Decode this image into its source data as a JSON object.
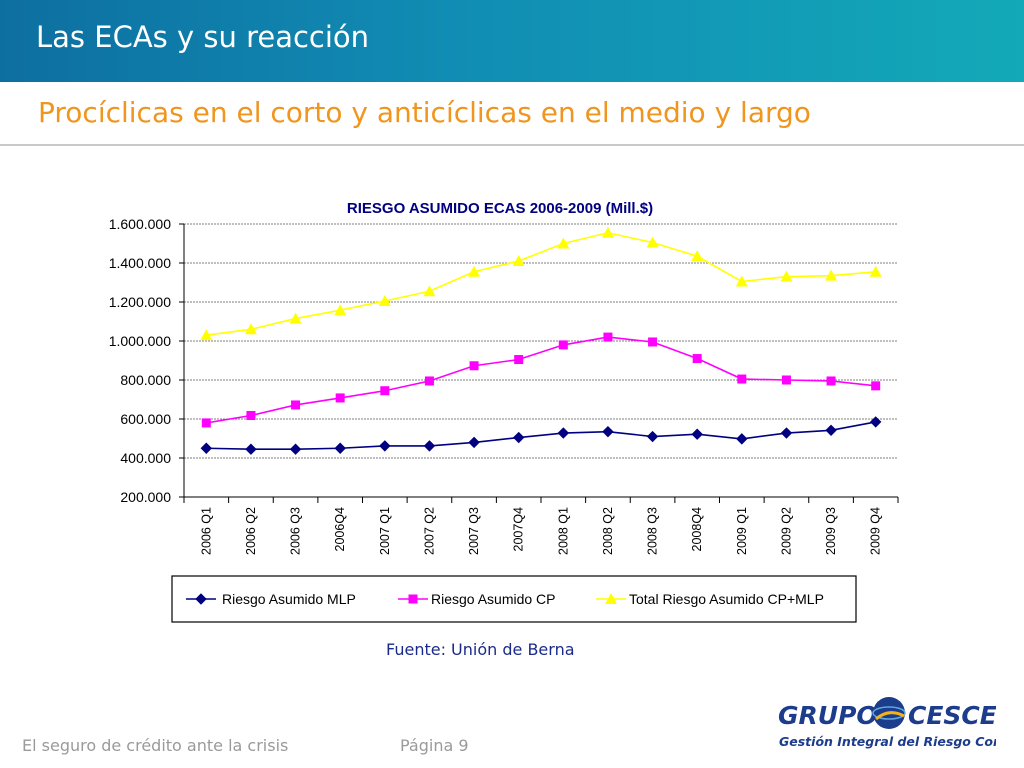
{
  "header": {
    "title": "Las ECAs y su reacción",
    "subtitle": "Procíclicas en el corto y anticíclicas en el medio y largo"
  },
  "source": "Fuente: Unión de Berna",
  "footer": {
    "left": "El seguro de crédito ante la crisis",
    "page": "Página 9"
  },
  "logo": {
    "left_word": "GRUPO",
    "right_word": "CESCE",
    "tagline": "Gestión Integral del Riesgo Comercial"
  },
  "chart_data": {
    "type": "line",
    "title": "RIESGO ASUMIDO ECAS 2006-2009 (Mill.$)",
    "xlabel": "",
    "ylabel": "",
    "ylim": [
      200000,
      1600000
    ],
    "yticks": [
      200000,
      400000,
      600000,
      800000,
      1000000,
      1200000,
      1400000,
      1600000
    ],
    "ytick_labels": [
      "200.000",
      "400.000",
      "600.000",
      "800.000",
      "1.000.000",
      "1.200.000",
      "1.400.000",
      "1.600.000"
    ],
    "grid": true,
    "legend_position": "bottom",
    "categories": [
      "2006 Q1",
      "2006 Q2",
      "2006 Q3",
      "2006Q4",
      "2007 Q1",
      "2007 Q2",
      "2007 Q3",
      "2007Q4",
      "2008 Q1",
      "2008 Q2",
      "2008 Q3",
      "2008Q4",
      "2009 Q1",
      "2009 Q2",
      "2009 Q3",
      "2009 Q4"
    ],
    "series": [
      {
        "name": "Riesgo Asumido MLP",
        "color": "#000080",
        "marker": "diamond",
        "values": [
          450000,
          445000,
          445000,
          450000,
          462000,
          462000,
          480000,
          505000,
          528000,
          535000,
          510000,
          522000,
          498000,
          528000,
          542000,
          585000
        ]
      },
      {
        "name": "Riesgo Asumido CP",
        "color": "#ff00ff",
        "marker": "square",
        "values": [
          580000,
          618000,
          672000,
          708000,
          745000,
          795000,
          873000,
          905000,
          980000,
          1020000,
          995000,
          910000,
          805000,
          800000,
          795000,
          770000
        ]
      },
      {
        "name": "Total Riesgo Asumido CP+MLP",
        "color": "#ffff00",
        "marker": "triangle",
        "values": [
          1030000,
          1060000,
          1115000,
          1158000,
          1205000,
          1255000,
          1355000,
          1410000,
          1500000,
          1555000,
          1505000,
          1435000,
          1305000,
          1330000,
          1335000,
          1355000
        ]
      }
    ]
  }
}
